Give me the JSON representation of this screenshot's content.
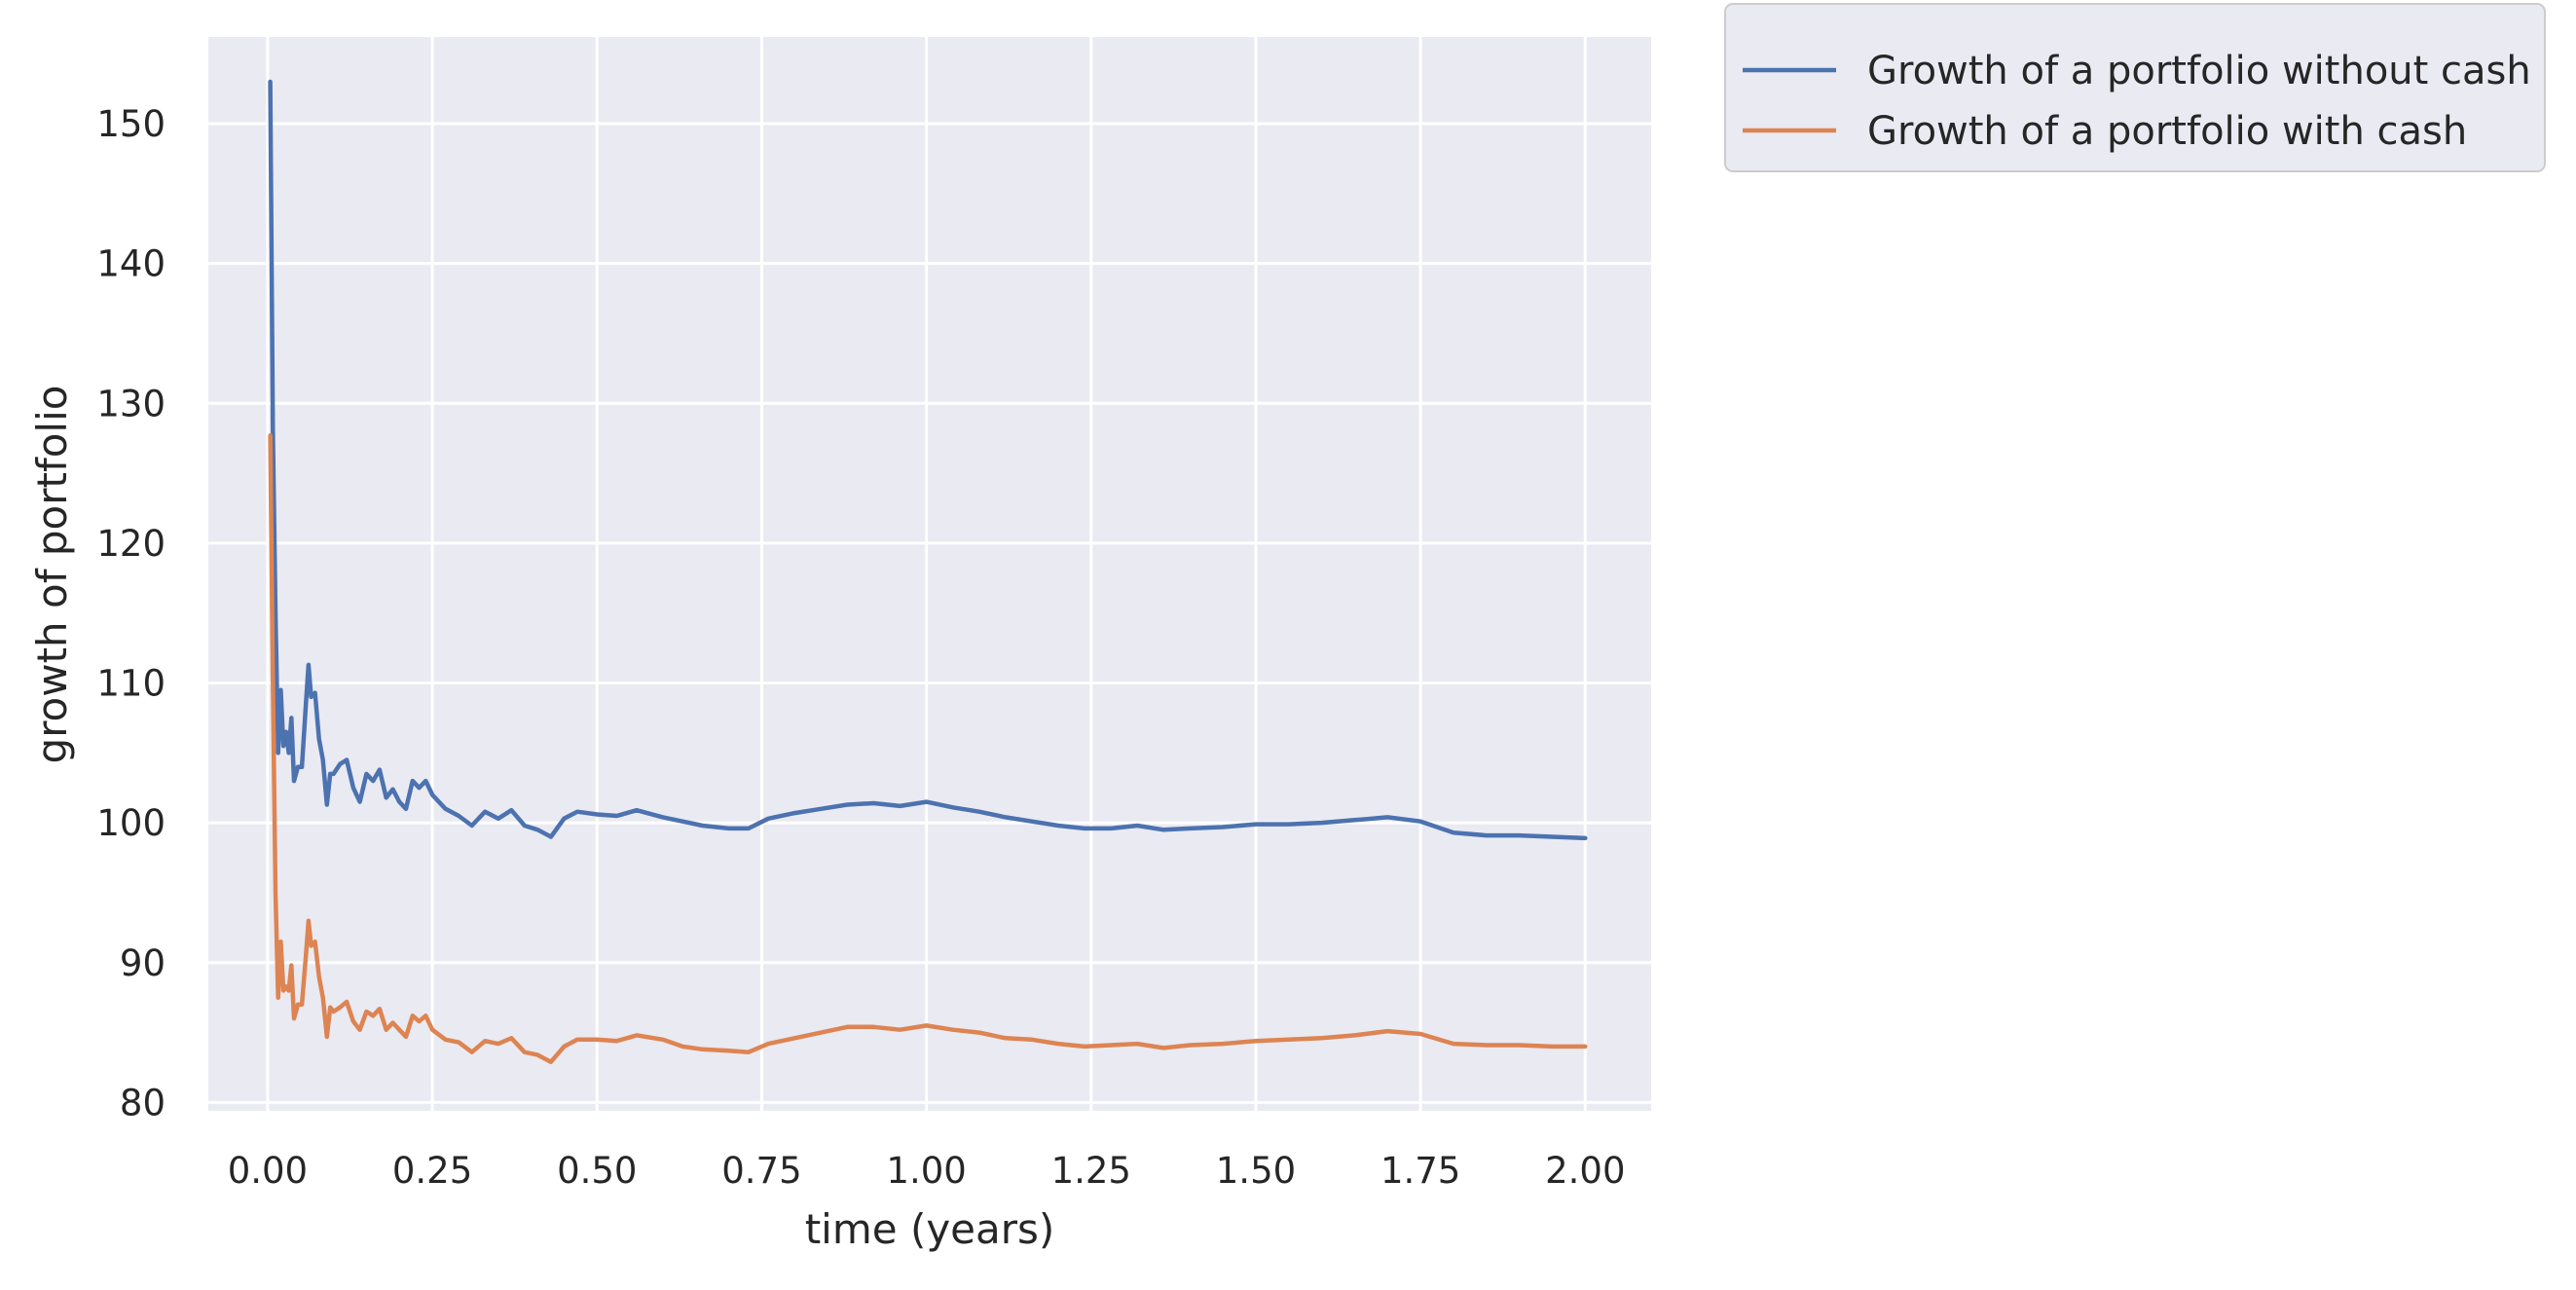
{
  "chart_data": {
    "type": "line",
    "title": "",
    "xlabel": "time (years)",
    "ylabel": "growth of portfolio",
    "xlim": [
      -0.09,
      2.1
    ],
    "ylim": [
      79.4,
      156.2
    ],
    "xticks": [
      0.0,
      0.25,
      0.5,
      0.75,
      1.0,
      1.25,
      1.5,
      1.75,
      2.0
    ],
    "xtick_labels": [
      "0.00",
      "0.25",
      "0.50",
      "0.75",
      "1.00",
      "1.25",
      "1.50",
      "1.75",
      "2.00"
    ],
    "yticks": [
      80,
      90,
      100,
      110,
      120,
      130,
      140,
      150
    ],
    "ytick_labels": [
      "80",
      "90",
      "100",
      "110",
      "120",
      "130",
      "140",
      "150"
    ],
    "grid": true,
    "legend_position": "outside-top-right",
    "colors": {
      "plot_background": "#eaeaf2",
      "grid": "#ffffff",
      "series_blue": "#4c72b0",
      "series_orange": "#dd8452"
    },
    "series": [
      {
        "name": "Growth of a portfolio without cash",
        "color": "#4c72b0",
        "points": [
          [
            0.004,
            153.0
          ],
          [
            0.008,
            128.0
          ],
          [
            0.012,
            115.0
          ],
          [
            0.016,
            105.0
          ],
          [
            0.02,
            109.5
          ],
          [
            0.024,
            105.5
          ],
          [
            0.028,
            106.5
          ],
          [
            0.032,
            105.0
          ],
          [
            0.036,
            107.5
          ],
          [
            0.04,
            103.0
          ],
          [
            0.046,
            104.0
          ],
          [
            0.052,
            104.0
          ],
          [
            0.058,
            108.5
          ],
          [
            0.062,
            111.3
          ],
          [
            0.066,
            109.0
          ],
          [
            0.072,
            109.3
          ],
          [
            0.078,
            106.0
          ],
          [
            0.084,
            104.5
          ],
          [
            0.09,
            101.3
          ],
          [
            0.095,
            103.5
          ],
          [
            0.1,
            103.5
          ],
          [
            0.11,
            104.2
          ],
          [
            0.12,
            104.5
          ],
          [
            0.13,
            102.5
          ],
          [
            0.14,
            101.5
          ],
          [
            0.15,
            103.5
          ],
          [
            0.16,
            103.0
          ],
          [
            0.17,
            103.8
          ],
          [
            0.18,
            101.8
          ],
          [
            0.19,
            102.4
          ],
          [
            0.2,
            101.5
          ],
          [
            0.21,
            101.0
          ],
          [
            0.22,
            103.0
          ],
          [
            0.23,
            102.5
          ],
          [
            0.24,
            103.0
          ],
          [
            0.25,
            102.0
          ],
          [
            0.27,
            101.0
          ],
          [
            0.29,
            100.5
          ],
          [
            0.31,
            99.8
          ],
          [
            0.33,
            100.8
          ],
          [
            0.35,
            100.3
          ],
          [
            0.37,
            100.9
          ],
          [
            0.39,
            99.8
          ],
          [
            0.41,
            99.5
          ],
          [
            0.43,
            99.0
          ],
          [
            0.45,
            100.3
          ],
          [
            0.47,
            100.8
          ],
          [
            0.5,
            100.6
          ],
          [
            0.53,
            100.5
          ],
          [
            0.56,
            100.9
          ],
          [
            0.6,
            100.4
          ],
          [
            0.63,
            100.1
          ],
          [
            0.66,
            99.8
          ],
          [
            0.7,
            99.6
          ],
          [
            0.73,
            99.6
          ],
          [
            0.76,
            100.3
          ],
          [
            0.8,
            100.7
          ],
          [
            0.84,
            101.0
          ],
          [
            0.88,
            101.3
          ],
          [
            0.92,
            101.4
          ],
          [
            0.96,
            101.2
          ],
          [
            1.0,
            101.5
          ],
          [
            1.04,
            101.1
          ],
          [
            1.08,
            100.8
          ],
          [
            1.12,
            100.4
          ],
          [
            1.16,
            100.1
          ],
          [
            1.2,
            99.8
          ],
          [
            1.24,
            99.6
          ],
          [
            1.28,
            99.6
          ],
          [
            1.32,
            99.8
          ],
          [
            1.36,
            99.5
          ],
          [
            1.4,
            99.6
          ],
          [
            1.45,
            99.7
          ],
          [
            1.5,
            99.9
          ],
          [
            1.55,
            99.9
          ],
          [
            1.6,
            100.0
          ],
          [
            1.65,
            100.2
          ],
          [
            1.7,
            100.4
          ],
          [
            1.75,
            100.1
          ],
          [
            1.8,
            99.3
          ],
          [
            1.85,
            99.1
          ],
          [
            1.9,
            99.1
          ],
          [
            1.95,
            99.0
          ],
          [
            2.0,
            98.9
          ]
        ]
      },
      {
        "name": "Growth of a portfolio with cash",
        "color": "#dd8452",
        "points": [
          [
            0.004,
            127.7
          ],
          [
            0.008,
            110.0
          ],
          [
            0.012,
            95.0
          ],
          [
            0.016,
            87.5
          ],
          [
            0.02,
            91.5
          ],
          [
            0.024,
            88.0
          ],
          [
            0.028,
            88.3
          ],
          [
            0.032,
            88.0
          ],
          [
            0.036,
            89.8
          ],
          [
            0.04,
            86.0
          ],
          [
            0.046,
            87.0
          ],
          [
            0.052,
            87.0
          ],
          [
            0.058,
            90.5
          ],
          [
            0.062,
            93.0
          ],
          [
            0.066,
            91.2
          ],
          [
            0.072,
            91.5
          ],
          [
            0.078,
            89.0
          ],
          [
            0.084,
            87.5
          ],
          [
            0.09,
            84.7
          ],
          [
            0.095,
            86.8
          ],
          [
            0.1,
            86.5
          ],
          [
            0.11,
            86.8
          ],
          [
            0.12,
            87.2
          ],
          [
            0.13,
            85.8
          ],
          [
            0.14,
            85.2
          ],
          [
            0.15,
            86.5
          ],
          [
            0.16,
            86.2
          ],
          [
            0.17,
            86.7
          ],
          [
            0.18,
            85.2
          ],
          [
            0.19,
            85.7
          ],
          [
            0.2,
            85.2
          ],
          [
            0.21,
            84.7
          ],
          [
            0.22,
            86.2
          ],
          [
            0.23,
            85.8
          ],
          [
            0.24,
            86.2
          ],
          [
            0.25,
            85.2
          ],
          [
            0.27,
            84.5
          ],
          [
            0.29,
            84.3
          ],
          [
            0.31,
            83.6
          ],
          [
            0.33,
            84.4
          ],
          [
            0.35,
            84.2
          ],
          [
            0.37,
            84.6
          ],
          [
            0.39,
            83.6
          ],
          [
            0.41,
            83.4
          ],
          [
            0.43,
            82.9
          ],
          [
            0.45,
            84.0
          ],
          [
            0.47,
            84.5
          ],
          [
            0.5,
            84.5
          ],
          [
            0.53,
            84.4
          ],
          [
            0.56,
            84.8
          ],
          [
            0.6,
            84.5
          ],
          [
            0.63,
            84.0
          ],
          [
            0.66,
            83.8
          ],
          [
            0.7,
            83.7
          ],
          [
            0.73,
            83.6
          ],
          [
            0.76,
            84.2
          ],
          [
            0.8,
            84.6
          ],
          [
            0.84,
            85.0
          ],
          [
            0.88,
            85.4
          ],
          [
            0.92,
            85.4
          ],
          [
            0.96,
            85.2
          ],
          [
            1.0,
            85.5
          ],
          [
            1.04,
            85.2
          ],
          [
            1.08,
            85.0
          ],
          [
            1.12,
            84.6
          ],
          [
            1.16,
            84.5
          ],
          [
            1.2,
            84.2
          ],
          [
            1.24,
            84.0
          ],
          [
            1.28,
            84.1
          ],
          [
            1.32,
            84.2
          ],
          [
            1.36,
            83.9
          ],
          [
            1.4,
            84.1
          ],
          [
            1.45,
            84.2
          ],
          [
            1.5,
            84.4
          ],
          [
            1.55,
            84.5
          ],
          [
            1.6,
            84.6
          ],
          [
            1.65,
            84.8
          ],
          [
            1.7,
            85.1
          ],
          [
            1.75,
            84.9
          ],
          [
            1.8,
            84.2
          ],
          [
            1.85,
            84.1
          ],
          [
            1.9,
            84.1
          ],
          [
            1.95,
            84.0
          ],
          [
            2.0,
            84.0
          ]
        ]
      }
    ]
  }
}
